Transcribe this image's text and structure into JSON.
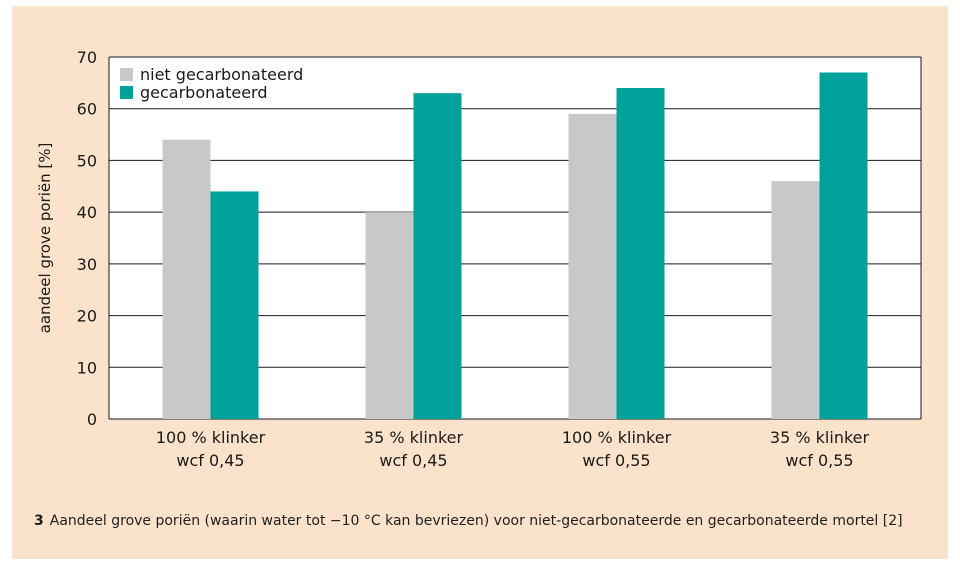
{
  "chart_data": {
    "type": "bar",
    "categories": [
      [
        "100 % klinker",
        "wcf 0,45"
      ],
      [
        "35 % klinker",
        "wcf 0,45"
      ],
      [
        "100 % klinker",
        "wcf 0,55"
      ],
      [
        "35 % klinker",
        "wcf 0,55"
      ]
    ],
    "series": [
      {
        "name": "niet gecarbonateerd",
        "values": [
          54,
          40,
          59,
          46
        ],
        "color": "#c8c8c8"
      },
      {
        "name": "gecarbonateerd",
        "values": [
          44,
          63,
          64,
          67
        ],
        "color": "#00a19a"
      }
    ],
    "ylabel": "aandeel grove poriën [%]",
    "ylim": [
      0,
      70
    ],
    "yticks": [
      0,
      10,
      20,
      30,
      40,
      50,
      60,
      70
    ],
    "grid": true,
    "legend": "top-left"
  },
  "caption": {
    "number": "3",
    "text": "Aandeel grove poriën (waarin water tot −10 °C kan bevriezen) voor niet-gecarbonateerde en gecarbonateerde mortel [2]"
  },
  "colors": {
    "background": "#fbe3cb",
    "plot_background": "#ffffff"
  }
}
